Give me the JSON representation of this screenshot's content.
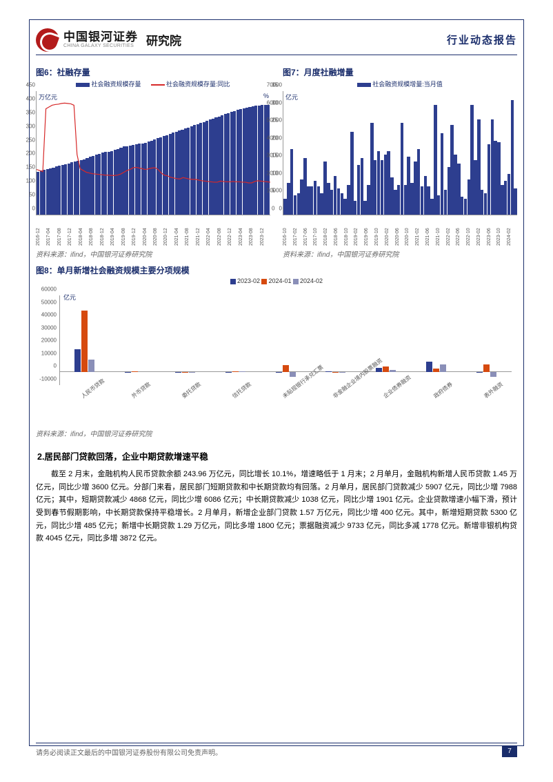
{
  "header": {
    "logo_cn": "中国银河证券",
    "logo_en": "CHINA GALAXY SECURITIES",
    "institute": "研究院",
    "report_type": "行业动态报告"
  },
  "chart6": {
    "title": "图6：社融存量",
    "legend": {
      "series1": "社会融资规模存量",
      "series2": "社会融资规模存量:同比"
    },
    "unit_left": "万亿元",
    "unit_right": "%",
    "yticks_left": [
      0,
      50,
      100,
      150,
      200,
      250,
      300,
      350,
      400,
      450
    ],
    "ylim_left": 450,
    "yticks_right": [
      0,
      5,
      10,
      15,
      20,
      25,
      30,
      35
    ],
    "ylim_right": 35,
    "bar_color": "#2d3e8f",
    "line_color": "#d62828",
    "x_labels": [
      "2016-12",
      "2017-04",
      "2017-08",
      "2017-12",
      "2018-04",
      "2018-08",
      "2018-12",
      "2019-04",
      "2019-08",
      "2019-12",
      "2020-04",
      "2020-08",
      "2020-12",
      "2021-04",
      "2021-08",
      "2021-12",
      "2022-04",
      "2022-08",
      "2022-12",
      "2023-04",
      "2023-08",
      "2023-12"
    ],
    "bars": [
      157,
      160,
      163,
      166,
      169,
      172,
      175,
      178,
      181,
      184,
      187,
      190,
      193,
      196,
      199,
      202,
      206,
      210,
      214,
      218,
      222,
      226,
      228,
      230,
      232,
      236,
      240,
      244,
      248,
      250,
      252,
      254,
      256,
      258,
      260,
      262,
      266,
      270,
      274,
      278,
      282,
      286,
      290,
      294,
      298,
      302,
      306,
      310,
      314,
      318,
      322,
      326,
      330,
      334,
      338,
      342,
      346,
      350,
      354,
      358,
      362,
      366,
      370,
      374,
      378,
      382,
      385,
      388,
      390,
      392,
      394,
      396,
      398,
      399,
      400,
      401
    ],
    "line": [
      12.8,
      12.5,
      12.2,
      30,
      30.5,
      31,
      31.2,
      31.3,
      31.5,
      31.6,
      31.5,
      31.4,
      31,
      17,
      13,
      12.5,
      12,
      11.8,
      11.6,
      11.5,
      11.4,
      11.3,
      11.2,
      11.2,
      11.1,
      11.1,
      11.2,
      11.5,
      12,
      12.5,
      12.8,
      13.3,
      13.4,
      13.2,
      13,
      12.8,
      13,
      13.2,
      13.3,
      12.8,
      11.8,
      11.2,
      11,
      10.6,
      10.4,
      10.2,
      10.1,
      10.5,
      10.3,
      10.1,
      10,
      10,
      9.8,
      9.6,
      9.5,
      9.4,
      9.3,
      9.2,
      9.2,
      9.5,
      9.4,
      9.3,
      9.3,
      9.4,
      9.3,
      9.3,
      9.2,
      9.2,
      9.0,
      9.0,
      9.4,
      9.6,
      9.5,
      9.4,
      9.3,
      9.2
    ],
    "source": "资料来源：ifind，中国银河证券研究院"
  },
  "chart7": {
    "title": "图7：月度社融增量",
    "legend": "社会融资规模增量:当月值",
    "unit_left": "亿元",
    "yticks": [
      0,
      10000,
      20000,
      30000,
      40000,
      50000,
      60000,
      70000
    ],
    "ylim": 70000,
    "bar_color": "#2d3e8f",
    "x_labels": [
      "2016-10",
      "2017-02",
      "2017-06",
      "2017-10",
      "2018-02",
      "2018-06",
      "2018-10",
      "2019-02",
      "2019-06",
      "2019-10",
      "2020-02",
      "2020-06",
      "2020-10",
      "2021-02",
      "2021-06",
      "2021-10",
      "2022-02",
      "2022-06",
      "2022-10",
      "2023-02",
      "2023-06",
      "2023-10",
      "2024-02"
    ],
    "bars": [
      9000,
      18000,
      37000,
      11000,
      12000,
      20000,
      32000,
      16000,
      16000,
      19000,
      16000,
      12000,
      30000,
      18000,
      14000,
      22000,
      15000,
      12000,
      9000,
      17000,
      47000,
      8000,
      28000,
      32000,
      8000,
      17000,
      52000,
      31000,
      36000,
      31000,
      34000,
      36000,
      21000,
      14000,
      17000,
      52000,
      17000,
      33000,
      18000,
      30000,
      37000,
      16000,
      22000,
      16000,
      9000,
      62000,
      11000,
      46000,
      14000,
      27000,
      51000,
      34000,
      29000,
      10000,
      9000,
      20000,
      62000,
      31000,
      54000,
      14000,
      12000,
      40000,
      54000,
      42000,
      41000,
      17000,
      19000,
      23000,
      65000,
      15000
    ],
    "source": "资料来源：ifind，中国银河证券研究院"
  },
  "chart8": {
    "title": "图8：单月新增社会融资规模主要分项规模",
    "legend": {
      "s1": "2023-02",
      "s2": "2024-01",
      "s3": "2024-02"
    },
    "unit": "亿元",
    "colors": {
      "s1": "#2d3e8f",
      "s2": "#d64a0f",
      "s3": "#8a8fb8"
    },
    "yticks": [
      -10000,
      0,
      10000,
      20000,
      30000,
      40000,
      50000,
      60000
    ],
    "ymin": -10000,
    "ymax": 60000,
    "categories": [
      "人民币贷款",
      "外币贷款",
      "委托贷款",
      "信托贷款",
      "未贴现银行承兑汇票",
      "非金融企业境内股票融资",
      "企业债券融资",
      "政府债券",
      "表外融资"
    ],
    "s1": [
      18200,
      310,
      -80,
      -70,
      -80,
      570,
      3700,
      8200,
      -150
    ],
    "s2": [
      48400,
      990,
      -40,
      730,
      5600,
      420,
      4800,
      2950,
      6000
    ],
    "s3": [
      9800,
      -10,
      -180,
      570,
      -3700,
      110,
      1600,
      6000,
      -3400
    ],
    "source": "资料来源：ifind，中国银河证券研究院"
  },
  "section2": {
    "heading": "2.居民部门贷款回落，企业中期贷款增速平稳",
    "p1": "截至 2 月末，金融机构人民币贷款余额 243.96 万亿元，同比增长 10.1%，增速略低于 1 月末；2 月单月，金融机构新增人民币贷款 1.45 万亿元，同比少增 3600 亿元。分部门来看，居民部门短期贷款和中长期贷款均有回落。2 月单月，居民部门贷款减少 5907 亿元，同比少增 7988 亿元；其中，短期贷款减少 4868 亿元，同比少增 6086 亿元；中长期贷款减少 1038 亿元，同比少增 1901 亿元。企业贷款增速小幅下滑，预计受到春节假期影响，中长期贷款保持平稳增长。2 月单月，新增企业部门贷款 1.57 万亿元，同比少增 400 亿元。其中，新增短期贷款 5300 亿元，同比少增 485 亿元；新增中长期贷款 1.29 万亿元，同比多增 1800 亿元；票据融资减少 9733 亿元，同比多减 1778 亿元。新增非银机构贷款 4045 亿元，同比多增 3872 亿元。"
  },
  "footer": {
    "disclaimer": "请务必阅读正文最后的中国银河证券股份有限公司免责声明。",
    "page": "7"
  }
}
